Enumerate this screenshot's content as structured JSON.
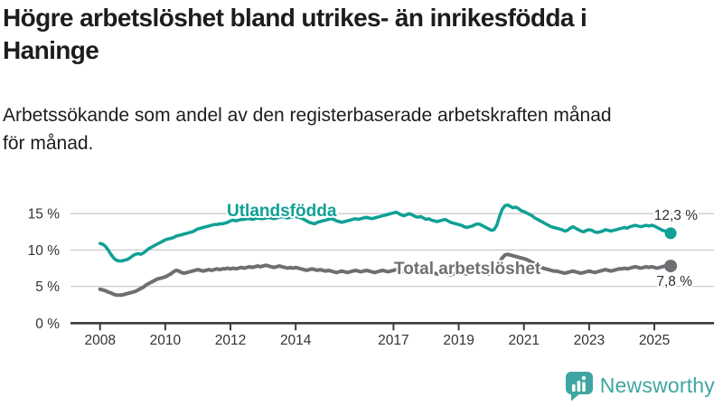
{
  "header": {
    "title_lines": [
      "Högre arbetslöshet bland utrikes- än inrikesfödda i",
      "Haninge"
    ],
    "subtitle_lines": [
      "Arbetssökande som andel av den registerbaserade arbetskraften månad",
      "för månad."
    ]
  },
  "chart_data": {
    "type": "line",
    "unit": "%",
    "x_interval": "monthly",
    "x_start_year": 2008,
    "x_end": "2025-07",
    "grid": "horizontal",
    "ylim": [
      0,
      17
    ],
    "xlim_years": [
      2007.1,
      2025.85
    ],
    "x_ticks": [
      {
        "value": 2008,
        "label": "2008"
      },
      {
        "value": 2010,
        "label": "2010"
      },
      {
        "value": 2012,
        "label": "2012"
      },
      {
        "value": 2014,
        "label": "2014"
      },
      {
        "value": 2017,
        "label": "2017"
      },
      {
        "value": 2019,
        "label": "2019"
      },
      {
        "value": 2021,
        "label": "2021"
      },
      {
        "value": 2023,
        "label": "2023"
      },
      {
        "value": 2025,
        "label": "2025"
      }
    ],
    "y_ticks": [
      {
        "value": 0,
        "label": "0 %"
      },
      {
        "value": 5,
        "label": "5 %"
      },
      {
        "value": 10,
        "label": "10 %"
      },
      {
        "value": 15,
        "label": "15 %"
      }
    ],
    "colors": {
      "grid": "#cbcbcb",
      "axis": "#3c3c3c",
      "tick_text": "#333333",
      "end_label_text": "#2e2e2e"
    },
    "series": [
      {
        "name": "Utlandsfödda",
        "color": "#10a095",
        "end_label": "12,3 %",
        "last_value": 12.3,
        "values": [
          10.9,
          10.8,
          10.5,
          10.0,
          9.4,
          8.9,
          8.6,
          8.5,
          8.5,
          8.6,
          8.7,
          8.9,
          9.2,
          9.4,
          9.5,
          9.4,
          9.6,
          9.9,
          10.2,
          10.4,
          10.6,
          10.8,
          11.0,
          11.2,
          11.4,
          11.5,
          11.6,
          11.7,
          11.9,
          12.0,
          12.1,
          12.2,
          12.3,
          12.4,
          12.5,
          12.7,
          12.9,
          13.0,
          13.1,
          13.2,
          13.3,
          13.4,
          13.5,
          13.5,
          13.6,
          13.6,
          13.7,
          13.8,
          14.0,
          14.1,
          14.0,
          14.1,
          14.2,
          14.2,
          14.3,
          14.3,
          14.2,
          14.3,
          14.4,
          14.3,
          14.3,
          14.4,
          14.5,
          14.4,
          14.3,
          14.4,
          14.5,
          14.6,
          14.5,
          14.4,
          14.5,
          14.6,
          14.6,
          14.5,
          14.4,
          14.2,
          14.0,
          13.8,
          13.7,
          13.6,
          13.8,
          13.9,
          14.0,
          14.1,
          14.2,
          14.3,
          14.2,
          14.0,
          13.9,
          13.8,
          13.9,
          14.0,
          14.1,
          14.2,
          14.3,
          14.2,
          14.3,
          14.4,
          14.5,
          14.4,
          14.3,
          14.4,
          14.5,
          14.6,
          14.7,
          14.8,
          14.9,
          15.0,
          15.1,
          15.2,
          15.0,
          14.8,
          14.7,
          14.9,
          15.0,
          14.8,
          14.6,
          14.5,
          14.6,
          14.4,
          14.2,
          14.3,
          14.1,
          14.0,
          13.9,
          14.0,
          14.1,
          14.2,
          14.0,
          13.8,
          13.7,
          13.6,
          13.5,
          13.4,
          13.2,
          13.1,
          13.2,
          13.3,
          13.5,
          13.6,
          13.5,
          13.3,
          13.1,
          12.9,
          12.7,
          12.8,
          13.4,
          14.6,
          15.6,
          16.1,
          16.2,
          16.0,
          15.8,
          15.9,
          15.7,
          15.4,
          15.3,
          15.1,
          14.9,
          14.7,
          14.4,
          14.2,
          14.0,
          13.8,
          13.6,
          13.4,
          13.2,
          13.1,
          13.0,
          12.9,
          12.8,
          12.6,
          12.7,
          13.0,
          13.2,
          13.0,
          12.8,
          12.6,
          12.5,
          12.7,
          12.8,
          12.7,
          12.5,
          12.4,
          12.5,
          12.6,
          12.8,
          12.7,
          12.6,
          12.7,
          12.8,
          12.9,
          13.0,
          13.1,
          13.0,
          13.2,
          13.3,
          13.4,
          13.3,
          13.2,
          13.3,
          13.4,
          13.3,
          13.4,
          13.3,
          13.1,
          12.9,
          12.7,
          12.6,
          12.4,
          12.3
        ]
      },
      {
        "name": "Total arbetslöshet",
        "color": "#6f6f73",
        "end_label": "7,8 %",
        "last_value": 7.8,
        "values": [
          4.6,
          4.5,
          4.4,
          4.2,
          4.1,
          3.9,
          3.8,
          3.8,
          3.8,
          3.9,
          4.0,
          4.1,
          4.2,
          4.3,
          4.5,
          4.7,
          4.9,
          5.2,
          5.4,
          5.6,
          5.8,
          6.0,
          6.1,
          6.2,
          6.3,
          6.5,
          6.7,
          7.0,
          7.2,
          7.1,
          6.9,
          6.8,
          6.9,
          7.0,
          7.1,
          7.2,
          7.3,
          7.2,
          7.1,
          7.2,
          7.3,
          7.2,
          7.3,
          7.4,
          7.3,
          7.4,
          7.4,
          7.5,
          7.4,
          7.5,
          7.4,
          7.5,
          7.6,
          7.5,
          7.6,
          7.7,
          7.6,
          7.7,
          7.8,
          7.7,
          7.8,
          7.9,
          7.8,
          7.7,
          7.6,
          7.7,
          7.8,
          7.7,
          7.6,
          7.5,
          7.6,
          7.5,
          7.6,
          7.5,
          7.4,
          7.3,
          7.2,
          7.3,
          7.4,
          7.3,
          7.2,
          7.3,
          7.2,
          7.1,
          7.2,
          7.1,
          7.0,
          6.9,
          7.0,
          7.1,
          7.0,
          6.9,
          7.0,
          7.1,
          7.2,
          7.1,
          7.0,
          7.1,
          7.2,
          7.1,
          7.0,
          6.9,
          7.0,
          7.1,
          7.2,
          7.1,
          7.0,
          7.1,
          7.2,
          7.3,
          7.2,
          7.1,
          7.0,
          7.1,
          7.2,
          7.1,
          7.0,
          6.9,
          7.0,
          6.9,
          6.9,
          7.0,
          6.9,
          6.8,
          6.7,
          6.8,
          6.9,
          6.8,
          6.7,
          6.6,
          6.7,
          6.8,
          6.8,
          6.9,
          6.8,
          6.7,
          6.8,
          6.9,
          7.0,
          7.1,
          7.0,
          6.9,
          6.8,
          6.7,
          6.8,
          6.9,
          7.4,
          8.3,
          8.9,
          9.3,
          9.4,
          9.3,
          9.2,
          9.1,
          9.0,
          8.9,
          8.8,
          8.7,
          8.5,
          8.3,
          8.1,
          7.9,
          7.7,
          7.5,
          7.4,
          7.3,
          7.2,
          7.1,
          7.1,
          7.0,
          6.9,
          6.8,
          6.9,
          7.0,
          7.1,
          7.0,
          6.9,
          6.8,
          6.9,
          7.0,
          7.1,
          7.0,
          6.9,
          7.0,
          7.1,
          7.2,
          7.3,
          7.2,
          7.1,
          7.2,
          7.3,
          7.4,
          7.4,
          7.5,
          7.4,
          7.5,
          7.6,
          7.7,
          7.6,
          7.5,
          7.6,
          7.7,
          7.6,
          7.7,
          7.6,
          7.5,
          7.6,
          7.7,
          7.8,
          7.8,
          7.8
        ]
      }
    ]
  },
  "footer": {
    "brand": "Newsworthy",
    "brand_color": "#3ea6a1",
    "logo_icon": "bar-chart-speech-bubble"
  }
}
